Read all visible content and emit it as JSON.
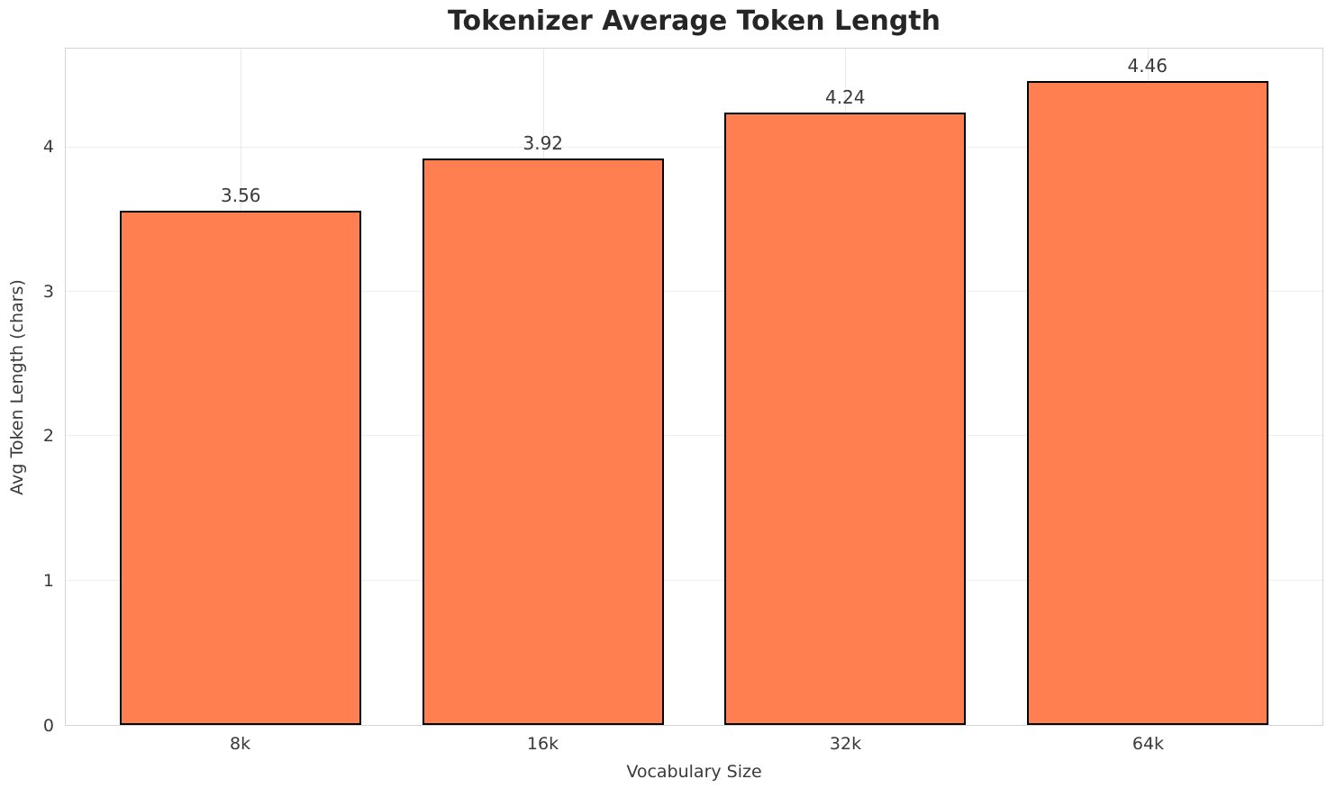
{
  "chart_data": {
    "type": "bar",
    "title": "Tokenizer Average Token Length",
    "xlabel": "Vocabulary Size",
    "ylabel": "Avg Token Length (chars)",
    "categories": [
      "8k",
      "16k",
      "32k",
      "64k"
    ],
    "values": [
      3.56,
      3.92,
      4.24,
      4.46
    ],
    "value_labels": [
      "3.56",
      "3.92",
      "4.24",
      "4.46"
    ],
    "yticks": [
      0,
      1,
      2,
      3,
      4
    ],
    "ylim": [
      0,
      4.683
    ],
    "grid": "both",
    "legend": "none",
    "bar_color": "#FF7F50",
    "bar_edge_color": "#000000",
    "grid_color": "#ebebeb",
    "spine_color": "#d4d4d4",
    "text_color": "#3a3a3a",
    "title_color": "#262626",
    "background_color": "#ffffff"
  }
}
